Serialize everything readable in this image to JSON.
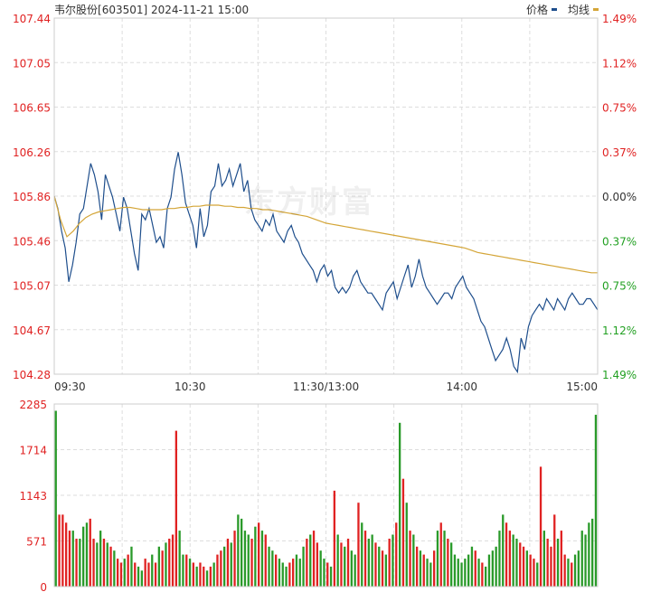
{
  "header": {
    "stock_name": "韦尔股份",
    "stock_code": "[603501]",
    "datetime": "2024-11-21 15:00"
  },
  "legend": {
    "price_label": "价格",
    "avg_label": "均线"
  },
  "watermark": "东方财富",
  "colors": {
    "price_line": "#1e4e8c",
    "avg_line": "#d4a537",
    "up": "#e02222",
    "down": "#2a9a2a",
    "axis_red": "#e02222",
    "axis_green": "#22a022",
    "grid": "#dddddd",
    "left_axis_text": "#e02222",
    "time_text": "#333333"
  },
  "chart_data": [
    {
      "type": "line",
      "title": "",
      "prev_close": 105.86,
      "ylim": [
        104.28,
        107.44
      ],
      "y_ticks": [
        "107.44",
        "107.05",
        "106.65",
        "106.26",
        "105.86",
        "105.46",
        "105.07",
        "104.67",
        "104.28"
      ],
      "right_ticks": [
        "1.49%",
        "1.12%",
        "0.75%",
        "0.37%",
        "0.00%",
        "0.37%",
        "0.75%",
        "1.12%",
        "1.49%"
      ],
      "x_ticks": [
        "09:30",
        "10:30",
        "11:30/13:00",
        "14:00",
        "15:00"
      ],
      "grid": true,
      "series": [
        {
          "name": "价格",
          "values": [
            105.86,
            105.75,
            105.55,
            105.4,
            105.1,
            105.25,
            105.45,
            105.7,
            105.75,
            105.95,
            106.15,
            106.05,
            105.9,
            105.65,
            106.05,
            105.95,
            105.85,
            105.7,
            105.55,
            105.85,
            105.75,
            105.55,
            105.35,
            105.2,
            105.7,
            105.65,
            105.75,
            105.6,
            105.45,
            105.5,
            105.4,
            105.75,
            105.85,
            106.1,
            106.25,
            106.05,
            105.8,
            105.7,
            105.6,
            105.4,
            105.75,
            105.5,
            105.6,
            105.9,
            105.95,
            106.15,
            105.95,
            106.0,
            106.1,
            105.95,
            106.05,
            106.15,
            105.9,
            106.0,
            105.75,
            105.65,
            105.6,
            105.55,
            105.65,
            105.6,
            105.7,
            105.55,
            105.5,
            105.45,
            105.55,
            105.6,
            105.5,
            105.45,
            105.35,
            105.3,
            105.25,
            105.2,
            105.1,
            105.2,
            105.25,
            105.15,
            105.2,
            105.05,
            105.0,
            105.05,
            105.0,
            105.05,
            105.15,
            105.2,
            105.1,
            105.05,
            105.0,
            105.0,
            104.95,
            104.9,
            104.85,
            105.0,
            105.05,
            105.1,
            104.95,
            105.05,
            105.15,
            105.25,
            105.05,
            105.15,
            105.3,
            105.15,
            105.05,
            105.0,
            104.95,
            104.9,
            104.95,
            105.0,
            105.0,
            104.95,
            105.05,
            105.1,
            105.15,
            105.05,
            105.0,
            104.95,
            104.85,
            104.75,
            104.7,
            104.6,
            104.5,
            104.4,
            104.45,
            104.5,
            104.6,
            104.5,
            104.35,
            104.3,
            104.6,
            104.5,
            104.7,
            104.8,
            104.85,
            104.9,
            104.85,
            104.95,
            104.9,
            104.85,
            104.95,
            104.9,
            104.85,
            104.95,
            105.0,
            104.95,
            104.9,
            104.9,
            104.95,
            104.95,
            104.9,
            104.85
          ]
        },
        {
          "name": "均线",
          "values": [
            105.86,
            105.65,
            105.5,
            105.55,
            105.62,
            105.67,
            105.7,
            105.72,
            105.73,
            105.74,
            105.75,
            105.76,
            105.76,
            105.75,
            105.74,
            105.74,
            105.74,
            105.74,
            105.75,
            105.75,
            105.76,
            105.76,
            105.77,
            105.77,
            105.78,
            105.78,
            105.78,
            105.77,
            105.77,
            105.76,
            105.76,
            105.75,
            105.75,
            105.74,
            105.74,
            105.73,
            105.72,
            105.71,
            105.7,
            105.69,
            105.68,
            105.66,
            105.64,
            105.62,
            105.61,
            105.6,
            105.59,
            105.58,
            105.57,
            105.56,
            105.55,
            105.54,
            105.53,
            105.52,
            105.51,
            105.5,
            105.49,
            105.48,
            105.47,
            105.46,
            105.45,
            105.44,
            105.43,
            105.42,
            105.41,
            105.4,
            105.38,
            105.36,
            105.35,
            105.34,
            105.33,
            105.32,
            105.31,
            105.3,
            105.29,
            105.28,
            105.27,
            105.26,
            105.25,
            105.24,
            105.23,
            105.22,
            105.21,
            105.2,
            105.19,
            105.18,
            105.18
          ]
        }
      ]
    },
    {
      "type": "bar",
      "title": "",
      "ylim": [
        0,
        2285
      ],
      "y_ticks": [
        "2285",
        "1714",
        "1143",
        "571",
        "0"
      ],
      "grid": true,
      "volumes": [
        2200,
        900,
        900,
        800,
        700,
        700,
        600,
        600,
        750,
        800,
        850,
        600,
        550,
        700,
        600,
        550,
        500,
        450,
        350,
        300,
        350,
        400,
        500,
        300,
        250,
        200,
        350,
        300,
        400,
        300,
        500,
        450,
        550,
        600,
        650,
        1950,
        700,
        400,
        400,
        350,
        300,
        250,
        300,
        250,
        200,
        250,
        300,
        400,
        450,
        500,
        600,
        550,
        700,
        900,
        850,
        700,
        650,
        600,
        750,
        800,
        700,
        650,
        500,
        450,
        400,
        350,
        300,
        250,
        300,
        350,
        400,
        350,
        500,
        600,
        650,
        700,
        550,
        450,
        350,
        300,
        250,
        1200,
        650,
        550,
        500,
        600,
        450,
        400,
        1050,
        800,
        700,
        600,
        650,
        550,
        500,
        450,
        400,
        600,
        650,
        800,
        2050,
        1350,
        1050,
        700,
        650,
        500,
        450,
        400,
        350,
        300,
        450,
        700,
        800,
        700,
        600,
        550,
        400,
        350,
        300,
        350,
        400,
        500,
        450,
        350,
        300,
        250,
        400,
        450,
        500,
        700,
        900,
        800,
        700,
        650,
        600,
        550,
        500,
        450,
        400,
        350,
        300,
        1500,
        700,
        600,
        500,
        900,
        600,
        700,
        400,
        350,
        300,
        400,
        450,
        700,
        650,
        800,
        850,
        2150
      ],
      "colors_up": [
        false,
        true,
        true,
        true,
        true,
        false,
        true,
        false,
        false,
        false,
        true,
        true,
        false,
        false,
        true,
        false,
        true,
        false,
        true,
        true,
        false,
        true,
        false,
        true,
        false,
        false,
        true,
        true,
        false,
        true,
        false,
        true,
        false,
        true,
        true,
        true,
        false,
        false,
        true,
        false,
        true,
        false,
        true,
        true,
        false,
        true,
        false,
        true,
        true,
        false,
        true,
        false,
        true,
        false,
        false,
        false,
        false,
        true,
        false,
        true,
        false,
        true,
        false,
        false,
        true,
        false,
        false,
        false,
        true,
        true,
        false,
        false,
        false,
        true,
        false,
        true,
        true,
        false,
        false,
        true,
        false,
        true,
        false,
        true,
        false,
        true,
        false,
        false,
        true,
        false,
        true,
        false,
        false,
        true,
        false,
        true,
        false,
        true,
        false,
        true,
        false,
        true,
        false,
        true,
        false,
        true,
        false,
        true,
        false,
        false,
        true,
        false,
        true,
        false,
        true,
        false,
        false,
        false,
        false,
        false,
        false,
        false,
        true,
        false,
        true,
        false,
        false,
        false,
        false,
        false,
        false,
        true,
        true,
        false,
        false,
        true,
        true,
        false,
        true,
        true,
        false,
        true,
        false,
        true,
        true,
        true,
        false,
        true,
        true,
        false,
        true,
        false,
        false
      ]
    }
  ]
}
